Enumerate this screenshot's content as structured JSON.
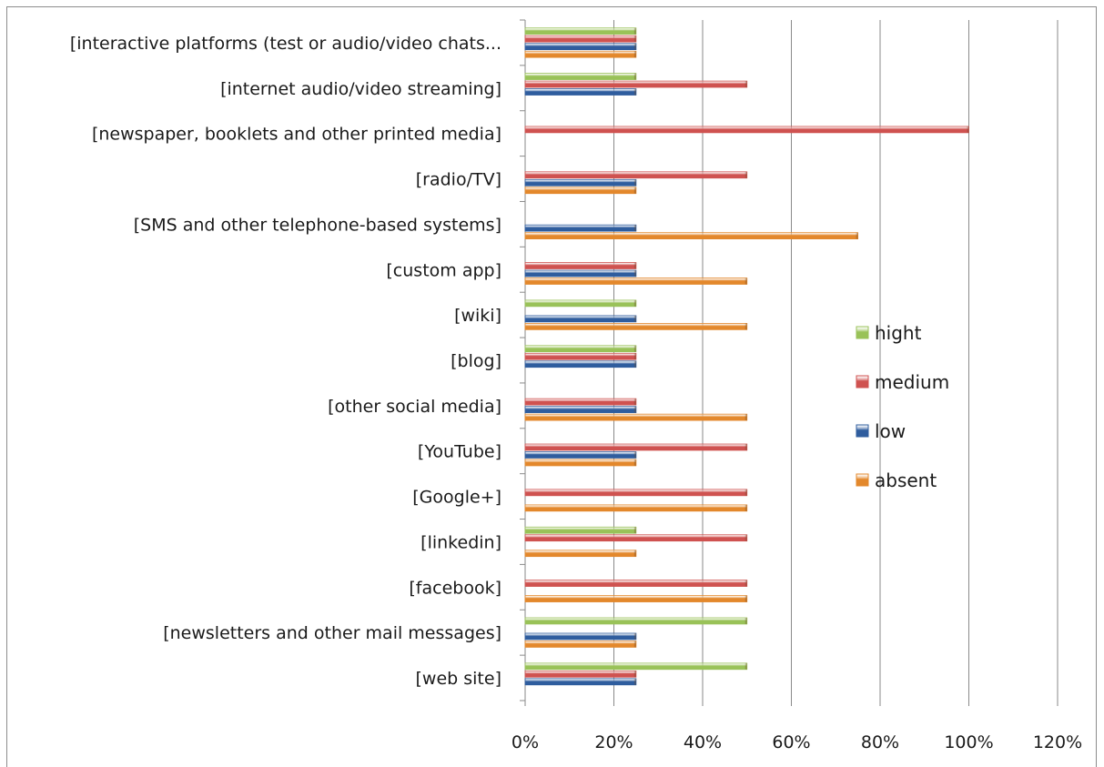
{
  "chart_data": {
    "type": "bar",
    "orientation": "horizontal",
    "categories": [
      "[web site]",
      "[newsletters and other mail messages]",
      "[facebook]",
      "[linkedin]",
      "[Google+]",
      "[YouTube]",
      "[other social media]",
      "[blog]",
      "[wiki]",
      "[custom app]",
      "[SMS and other telephone-based systems]",
      "[radio/TV]",
      "[newspaper, booklets and other printed media]",
      "[internet audio/video streaming]",
      "[interactive platforms (test or audio/video chats..."
    ],
    "series": [
      {
        "name": "absent",
        "color": "#e3882c",
        "values": [
          0,
          25,
          50,
          25,
          50,
          25,
          50,
          0,
          50,
          50,
          75,
          25,
          0,
          0,
          25
        ]
      },
      {
        "name": "low",
        "color": "#2f5d9e",
        "values": [
          25,
          25,
          0,
          0,
          0,
          25,
          25,
          25,
          25,
          25,
          25,
          25,
          0,
          25,
          25
        ]
      },
      {
        "name": "medium",
        "color": "#cf5250",
        "values": [
          25,
          0,
          50,
          50,
          50,
          50,
          25,
          25,
          0,
          25,
          0,
          50,
          100,
          50,
          25
        ]
      },
      {
        "name": "hight",
        "color": "#99c258",
        "values": [
          50,
          50,
          0,
          25,
          0,
          0,
          0,
          25,
          25,
          0,
          0,
          0,
          0,
          25,
          25
        ]
      }
    ],
    "x_ticks": [
      "0%",
      "20%",
      "40%",
      "60%",
      "80%",
      "100%",
      "120%"
    ],
    "xlim": [
      0,
      120
    ],
    "x_unit": "%",
    "grid": true,
    "legend_position": "right",
    "legend_order": [
      "hight",
      "medium",
      "low",
      "absent"
    ],
    "title": "",
    "xlabel": "",
    "ylabel": ""
  }
}
